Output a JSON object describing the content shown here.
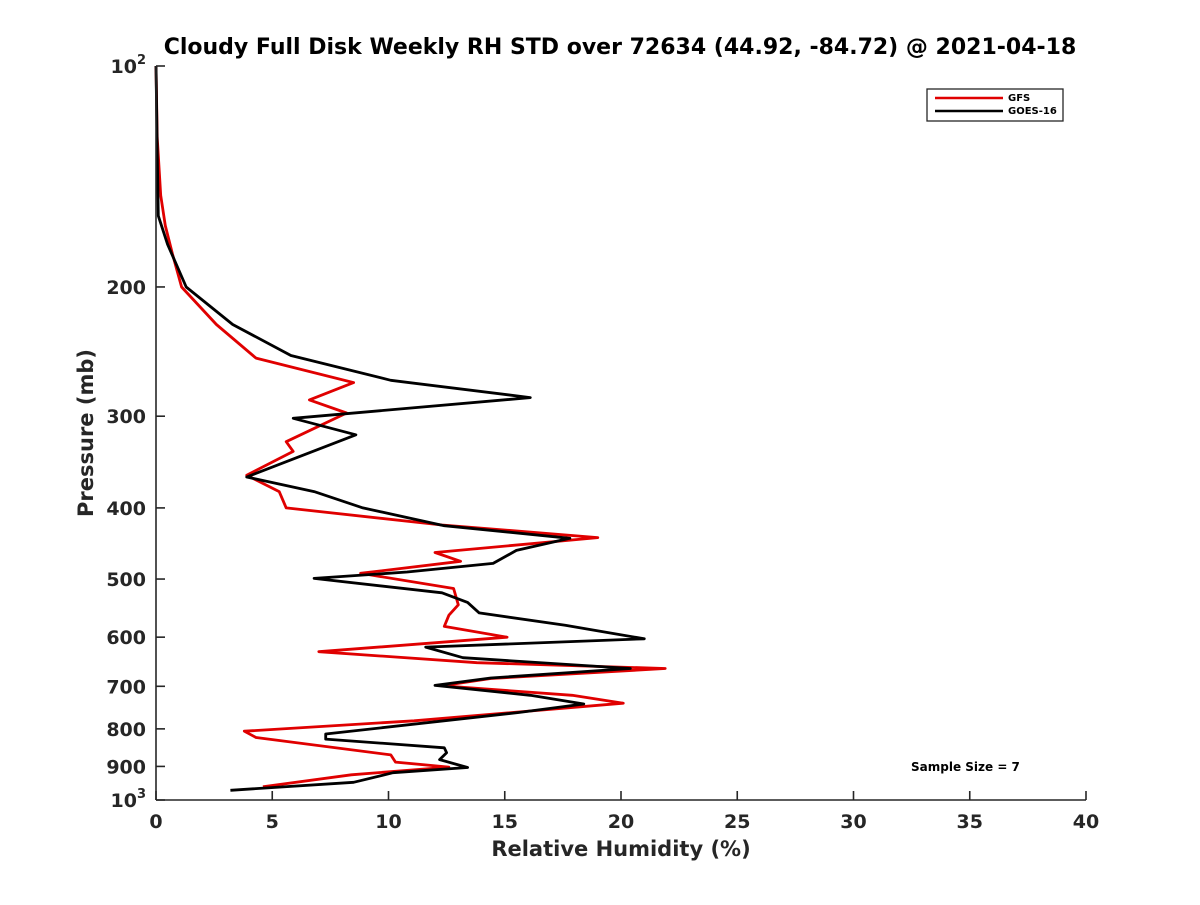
{
  "chart_data": {
    "type": "line",
    "title": "Cloudy Full Disk Weekly RH STD over 72634 (44.92, -84.72) @ 2021-04-18",
    "xlabel": "Relative Humidity (%)",
    "ylabel": "Pressure (mb)",
    "xlim": [
      0,
      40
    ],
    "ylim": [
      100,
      1000
    ],
    "yscale": "log",
    "y_reversed": true,
    "grid": false,
    "legend_position": "top-right",
    "x_ticks": [
      "0",
      "5",
      "10",
      "15",
      "20",
      "25",
      "30",
      "35",
      "40"
    ],
    "y_ticks": [
      {
        "value": 100,
        "base": "10",
        "exp": "2"
      },
      {
        "value": 200,
        "label": "200"
      },
      {
        "value": 300,
        "label": "300"
      },
      {
        "value": 400,
        "label": "400"
      },
      {
        "value": 500,
        "label": "500"
      },
      {
        "value": 600,
        "label": "600"
      },
      {
        "value": 700,
        "label": "700"
      },
      {
        "value": 800,
        "label": "800"
      },
      {
        "value": 900,
        "label": "900"
      },
      {
        "value": 1000,
        "base": "10",
        "exp": "3"
      }
    ],
    "annotation": "Sample Size = 7",
    "series": [
      {
        "name": "GFS",
        "color": "#e00000",
        "points": [
          [
            0.0,
            100
          ],
          [
            0.05,
            125
          ],
          [
            0.2,
            150
          ],
          [
            0.4,
            165
          ],
          [
            0.7,
            180
          ],
          [
            1.1,
            200
          ],
          [
            2.6,
            225
          ],
          [
            4.3,
            250
          ],
          [
            8.5,
            270
          ],
          [
            6.6,
            285
          ],
          [
            8.2,
            297
          ],
          [
            5.6,
            325
          ],
          [
            5.9,
            335
          ],
          [
            3.9,
            361
          ],
          [
            5.3,
            380
          ],
          [
            5.6,
            400
          ],
          [
            12.3,
            422
          ],
          [
            19.0,
            439
          ],
          [
            12.0,
            460
          ],
          [
            13.1,
            473
          ],
          [
            8.8,
            491
          ],
          [
            12.8,
            515
          ],
          [
            13.0,
            542
          ],
          [
            12.6,
            560
          ],
          [
            12.4,
            580
          ],
          [
            15.1,
            600
          ],
          [
            7.0,
            628
          ],
          [
            13.8,
            650
          ],
          [
            21.9,
            662
          ],
          [
            14.4,
            683
          ],
          [
            12.3,
            699
          ],
          [
            17.9,
            720
          ],
          [
            20.1,
            738
          ],
          [
            11.1,
            780
          ],
          [
            3.8,
            806
          ],
          [
            4.3,
            822
          ],
          [
            10.1,
            868
          ],
          [
            10.3,
            888
          ],
          [
            12.6,
            902
          ],
          [
            8.4,
            924
          ],
          [
            4.6,
            959
          ]
        ]
      },
      {
        "name": "GOES-16",
        "color": "#000000",
        "points": [
          [
            0.0,
            100
          ],
          [
            0.05,
            130
          ],
          [
            0.1,
            160
          ],
          [
            0.5,
            175
          ],
          [
            1.3,
            200
          ],
          [
            3.3,
            225
          ],
          [
            5.8,
            248
          ],
          [
            10.1,
            268
          ],
          [
            16.1,
            283
          ],
          [
            5.9,
            302
          ],
          [
            8.6,
            318
          ],
          [
            3.9,
            363
          ],
          [
            6.8,
            380
          ],
          [
            8.9,
            400
          ],
          [
            12.4,
            423
          ],
          [
            17.8,
            440
          ],
          [
            15.5,
            457
          ],
          [
            14.5,
            476
          ],
          [
            10.8,
            489
          ],
          [
            6.8,
            499
          ],
          [
            12.3,
            522
          ],
          [
            13.4,
            538
          ],
          [
            13.9,
            556
          ],
          [
            17.6,
            578
          ],
          [
            21.0,
            603
          ],
          [
            11.6,
            619
          ],
          [
            13.2,
            640
          ],
          [
            20.4,
            662
          ],
          [
            14.4,
            682
          ],
          [
            12.0,
            698
          ],
          [
            16.1,
            720
          ],
          [
            18.4,
            740
          ],
          [
            15.6,
            760
          ],
          [
            7.3,
            813
          ],
          [
            7.3,
            826
          ],
          [
            12.4,
            849
          ],
          [
            12.5,
            862
          ],
          [
            12.2,
            881
          ],
          [
            13.4,
            903
          ],
          [
            10.2,
            918
          ],
          [
            8.5,
            946
          ],
          [
            3.2,
            970
          ]
        ]
      }
    ]
  }
}
